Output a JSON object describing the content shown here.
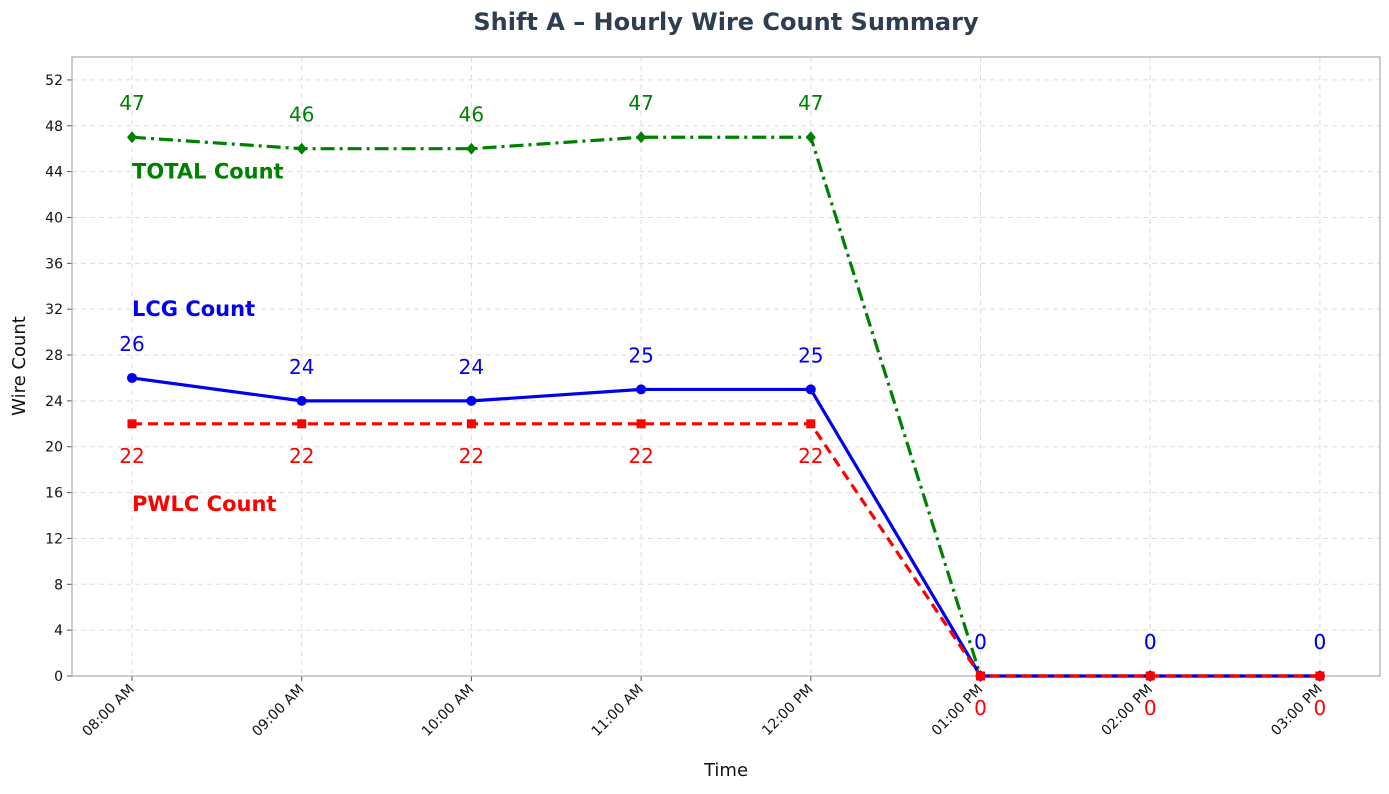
{
  "chart_data": {
    "type": "line",
    "title": "Shift A – Hourly Wire Count Summary",
    "xlabel": "Time",
    "ylabel": "Wire Count",
    "categories": [
      "08:00 AM",
      "09:00 AM",
      "10:00 AM",
      "11:00 AM",
      "12:00 PM",
      "01:00 PM",
      "02:00 PM",
      "03:00 PM"
    ],
    "ylim": [
      0,
      54
    ],
    "yticks": [
      0,
      4,
      8,
      12,
      16,
      20,
      24,
      28,
      32,
      36,
      40,
      44,
      48,
      52
    ],
    "grid": true,
    "series": [
      {
        "name": "TOTAL Count",
        "values": [
          47,
          46,
          46,
          47,
          47,
          0,
          0,
          0
        ],
        "color": "#008000",
        "marker": "diamond",
        "line": "dashdot",
        "label_position": "above"
      },
      {
        "name": "LCG Count",
        "values": [
          26,
          24,
          24,
          25,
          25,
          0,
          0,
          0
        ],
        "color": "#0000ee",
        "marker": "circle",
        "line": "solid",
        "label_position": "above"
      },
      {
        "name": "PWLC Count",
        "values": [
          22,
          22,
          22,
          22,
          22,
          0,
          0,
          0
        ],
        "color": "#ff0000",
        "marker": "square",
        "line": "dashed",
        "label_position": "below"
      }
    ],
    "series_labels": [
      {
        "text": "TOTAL Count",
        "color": "#008000",
        "anchor_y": 44
      },
      {
        "text": "LCG Count",
        "color": "#0000ee",
        "anchor_y": 32
      },
      {
        "text": "PWLC Count",
        "color": "#ff0000",
        "anchor_y": 15
      }
    ],
    "title_color": "#2c3e50"
  }
}
